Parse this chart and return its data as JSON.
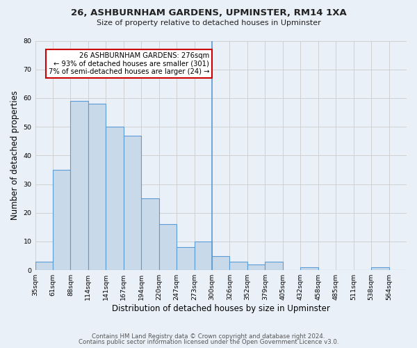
{
  "title": "26, ASHBURNHAM GARDENS, UPMINSTER, RM14 1XA",
  "subtitle": "Size of property relative to detached houses in Upminster",
  "xlabel": "Distribution of detached houses by size in Upminster",
  "ylabel": "Number of detached properties",
  "bin_labels": [
    "35sqm",
    "61sqm",
    "88sqm",
    "114sqm",
    "141sqm",
    "167sqm",
    "194sqm",
    "220sqm",
    "247sqm",
    "273sqm",
    "300sqm",
    "326sqm",
    "352sqm",
    "379sqm",
    "405sqm",
    "432sqm",
    "458sqm",
    "485sqm",
    "511sqm",
    "538sqm",
    "564sqm"
  ],
  "bar_heights": [
    3,
    35,
    59,
    58,
    50,
    47,
    25,
    16,
    8,
    10,
    5,
    3,
    2,
    3,
    0,
    1,
    0,
    0,
    0,
    1,
    0
  ],
  "bar_color": "#c8daea",
  "bar_edge_color": "#5b9bd5",
  "annotation_text": "26 ASHBURNHAM GARDENS: 276sqm\n← 93% of detached houses are smaller (301)\n7% of semi-detached houses are larger (24) →",
  "annotation_box_color": "#ffffff",
  "annotation_box_edge_color": "#cc0000",
  "property_line_index": 9,
  "ylim": [
    0,
    80
  ],
  "yticks": [
    0,
    10,
    20,
    30,
    40,
    50,
    60,
    70,
    80
  ],
  "grid_color": "#cccccc",
  "background_color": "#eaf0f8",
  "footer_line1": "Contains HM Land Registry data © Crown copyright and database right 2024.",
  "footer_line2": "Contains public sector information licensed under the Open Government Licence v3.0."
}
